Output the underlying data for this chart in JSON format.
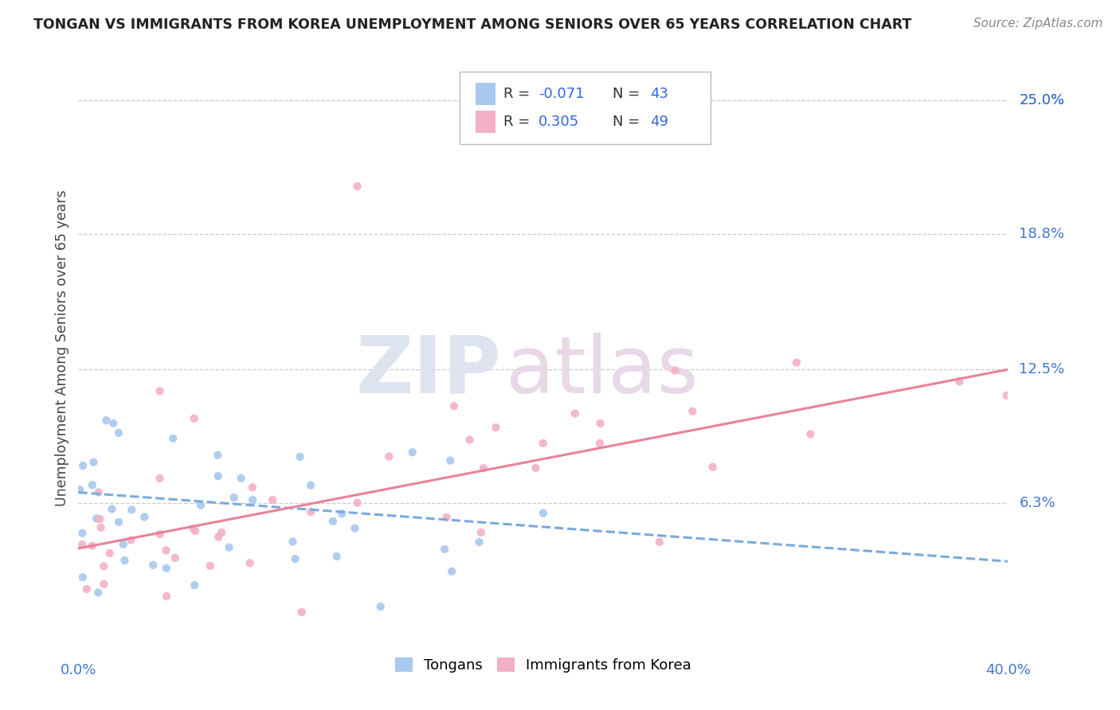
{
  "title": "TONGAN VS IMMIGRANTS FROM KOREA UNEMPLOYMENT AMONG SENIORS OVER 65 YEARS CORRELATION CHART",
  "source": "Source: ZipAtlas.com",
  "ylabel": "Unemployment Among Seniors over 65 years",
  "ytick_labels": [
    "25.0%",
    "18.8%",
    "12.5%",
    "6.3%"
  ],
  "ytick_values": [
    0.25,
    0.188,
    0.125,
    0.063
  ],
  "xlim": [
    0.0,
    0.4
  ],
  "ylim": [
    0.0,
    0.27
  ],
  "legend_bottom_label_1": "Tongans",
  "legend_bottom_label_2": "Immigrants from Korea",
  "tongan_color": "#a8c8f0",
  "korea_color": "#f4afc8",
  "tongan_line_color": "#7aaadd",
  "korea_line_color": "#e8829a",
  "watermark_zip": "ZIP",
  "watermark_atlas": "atlas",
  "tongan_R": -0.071,
  "korea_R": 0.305,
  "tongan_N": 43,
  "korea_N": 49,
  "blue_line_x": [
    0.0,
    0.4
  ],
  "blue_line_y": [
    0.068,
    0.036
  ],
  "pink_line_x": [
    0.0,
    0.4
  ],
  "pink_line_y": [
    0.042,
    0.125
  ]
}
